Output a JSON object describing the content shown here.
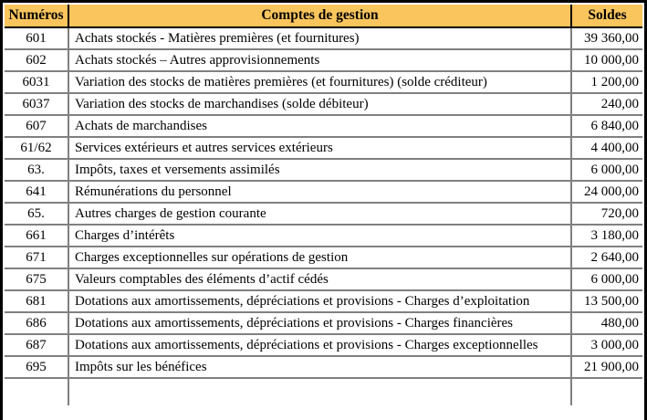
{
  "table": {
    "colors": {
      "header_bg": "#FBC55D",
      "grid": "#808080",
      "frame": "#000000"
    },
    "columns": {
      "numeros": "Numéros",
      "comptes": "Comptes de gestion",
      "soldes": "Soldes"
    },
    "rows": [
      {
        "num": "601",
        "label": "Achats stockés - Matières premières (et fournitures)",
        "solde": "39 360,00"
      },
      {
        "num": "602",
        "label": "Achats stockés – Autres approvisionnements",
        "solde": "10 000,00"
      },
      {
        "num": "6031",
        "label": "Variation des stocks de matières premières (et fournitures) (solde créditeur)",
        "solde": "1 200,00"
      },
      {
        "num": "6037",
        "label": "Variation des stocks de marchandises (solde débiteur)",
        "solde": "240,00"
      },
      {
        "num": "607",
        "label": "Achats de marchandises",
        "solde": "6 840,00"
      },
      {
        "num": "61/62",
        "label": "Services extérieurs et autres services extérieurs",
        "solde": "4 400,00"
      },
      {
        "num": "63.",
        "label": "Impôts, taxes et versements assimilés",
        "solde": "6 000,00"
      },
      {
        "num": "641",
        "label": "Rémunérations du personnel",
        "solde": "24 000,00"
      },
      {
        "num": "65.",
        "label": "Autres charges de gestion courante",
        "solde": "720,00"
      },
      {
        "num": "661",
        "label": "Charges d’intérêts",
        "solde": "3 180,00"
      },
      {
        "num": "671",
        "label": "Charges exceptionnelles sur opérations de gestion",
        "solde": "2 640,00"
      },
      {
        "num": "675",
        "label": "Valeurs comptables des éléments d’actif cédés",
        "solde": "6 000,00"
      },
      {
        "num": "681",
        "label": "Dotations aux amortissements, dépréciations et provisions - Charges d’exploitation",
        "solde": "13 500,00"
      },
      {
        "num": "686",
        "label": "Dotations aux amortissements, dépréciations et provisions - Charges financières",
        "solde": "480,00"
      },
      {
        "num": "687",
        "label": "Dotations aux amortissements, dépréciations et provisions - Charges exceptionnelles",
        "solde": "3 000,00"
      },
      {
        "num": "695",
        "label": "Impôts sur les bénéfices",
        "solde": "21 900,00"
      }
    ]
  }
}
